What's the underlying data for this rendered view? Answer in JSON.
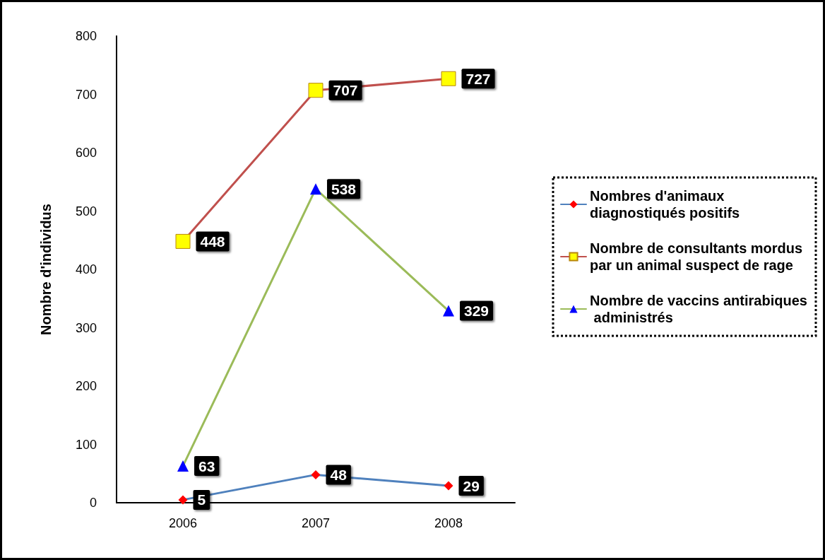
{
  "chart_data": {
    "type": "line",
    "ylabel": "Nombre d'individus",
    "categories": [
      "2006",
      "2007",
      "2008"
    ],
    "series": [
      {
        "name": "Nombres d'animaux diagnostiqués positifs",
        "color": "#4f81bd",
        "colors": [
          "#ff0000",
          "#ff0000",
          "#ff0000"
        ],
        "marker": "diamond",
        "values": [
          5,
          48,
          29
        ]
      },
      {
        "name": "Nombre de consultants mordus par un animal suspect de rage",
        "color": "#c0504d",
        "colors": [
          "#ffff00",
          "#ffff00",
          "#ffff00"
        ],
        "marker": "square",
        "values": [
          448,
          707,
          727
        ]
      },
      {
        "name": "Nombre de vaccins antirabiques administrés",
        "color": "#9bbb59",
        "colors": [
          "#0000ff",
          "#0000ff",
          "#0000ff"
        ],
        "marker": "triangle",
        "values": [
          63,
          538,
          329
        ]
      }
    ],
    "ylim": [
      0,
      800
    ],
    "yticks": [
      0,
      100,
      200,
      300,
      400,
      500,
      600,
      700,
      800
    ],
    "grid": false,
    "legend": "right",
    "data_labels": true,
    "line_style": "solid"
  }
}
